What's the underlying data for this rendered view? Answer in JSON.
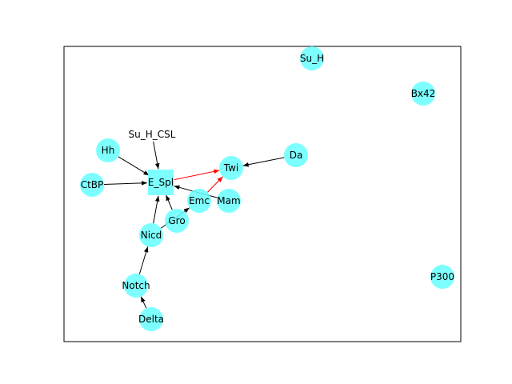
{
  "graph": {
    "node_color": "#66ffff",
    "edge_color_default": "#000000",
    "edge_color_highlight": "#ff0000",
    "nodes": [
      {
        "id": "Su_H",
        "label": "Su_H",
        "shape": "circle",
        "visible": true
      },
      {
        "id": "Bx42",
        "label": "Bx42",
        "shape": "circle",
        "visible": true
      },
      {
        "id": "Su_H_CSL",
        "label": "Su_H_CSL",
        "shape": "circle",
        "visible": false
      },
      {
        "id": "Hh",
        "label": "Hh",
        "shape": "circle",
        "visible": true
      },
      {
        "id": "Da",
        "label": "Da",
        "shape": "circle",
        "visible": true
      },
      {
        "id": "Twi",
        "label": "Twi",
        "shape": "circle",
        "visible": true
      },
      {
        "id": "CtBP",
        "label": "CtBP",
        "shape": "circle",
        "visible": true
      },
      {
        "id": "E_Spl",
        "label": "E_Spl",
        "shape": "square",
        "visible": true
      },
      {
        "id": "Emc",
        "label": "Emc",
        "shape": "circle",
        "visible": true
      },
      {
        "id": "Mam",
        "label": "Mam",
        "shape": "circle",
        "visible": true
      },
      {
        "id": "Gro",
        "label": "Gro",
        "shape": "circle",
        "visible": true
      },
      {
        "id": "Nicd",
        "label": "Nicd",
        "shape": "circle",
        "visible": true
      },
      {
        "id": "Notch",
        "label": "Notch",
        "shape": "circle",
        "visible": true
      },
      {
        "id": "Delta",
        "label": "Delta",
        "shape": "circle",
        "visible": true
      },
      {
        "id": "P300",
        "label": "P300",
        "shape": "circle",
        "visible": true
      }
    ],
    "edges": [
      {
        "source": "Su_H_CSL",
        "target": "E_Spl",
        "color": "black"
      },
      {
        "source": "Hh",
        "target": "E_Spl",
        "color": "black"
      },
      {
        "source": "CtBP",
        "target": "E_Spl",
        "color": "black"
      },
      {
        "source": "Mam",
        "target": "E_Spl",
        "color": "black"
      },
      {
        "source": "Gro",
        "target": "E_Spl",
        "color": "black"
      },
      {
        "source": "Nicd",
        "target": "E_Spl",
        "color": "black"
      },
      {
        "source": "Nicd",
        "target": "Emc",
        "color": "black"
      },
      {
        "source": "Notch",
        "target": "Nicd",
        "color": "black"
      },
      {
        "source": "Delta",
        "target": "Notch",
        "color": "black"
      },
      {
        "source": "Da",
        "target": "Twi",
        "color": "black"
      },
      {
        "source": "E_Spl",
        "target": "Twi",
        "color": "red"
      },
      {
        "source": "Emc",
        "target": "Twi",
        "color": "red"
      }
    ]
  }
}
